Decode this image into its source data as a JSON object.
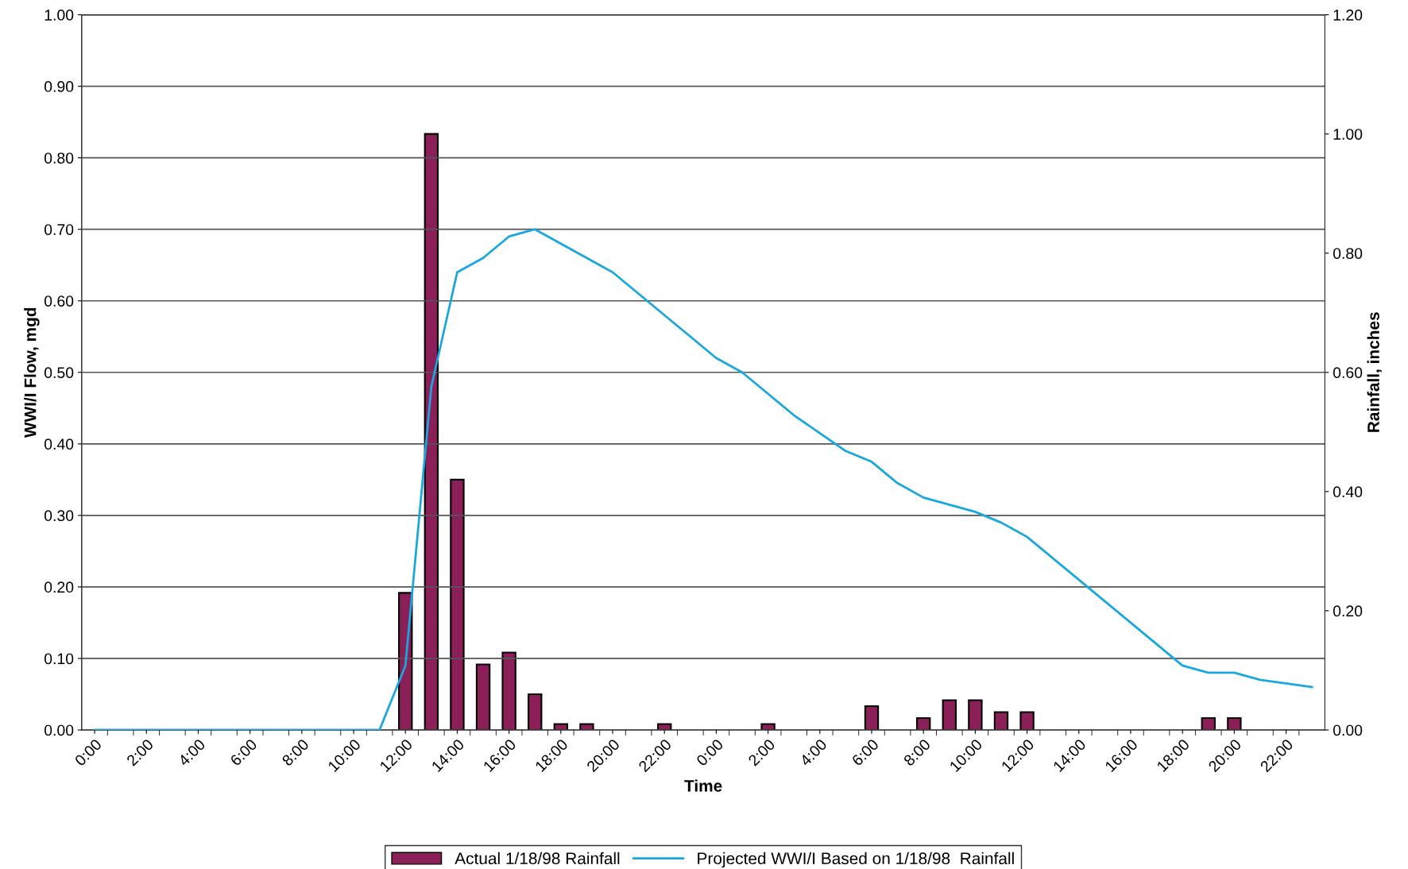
{
  "chart_data": {
    "type": "bar",
    "xlabel": "Time",
    "ylabel": "WWI/I Flow, mgd",
    "y2label": "Rainfall, inches",
    "categories": [
      "0:00",
      null,
      "2:00",
      null,
      "4:00",
      null,
      "6:00",
      null,
      "8:00",
      null,
      "10:00",
      null,
      "12:00",
      null,
      "14:00",
      null,
      "16:00",
      null,
      "18:00",
      null,
      "20:00",
      null,
      "22:00",
      null,
      "0:00",
      null,
      "2:00",
      null,
      "4:00",
      null,
      "6:00",
      null,
      "8:00",
      null,
      "10:00",
      null,
      "12:00",
      null,
      "14:00",
      null,
      "16:00",
      null,
      "18:00",
      null,
      "20:00",
      null,
      "22:00",
      null
    ],
    "series": [
      {
        "name": "Actual 1/18/98 Rainfall",
        "axis": "y2",
        "color": "#8b1f57",
        "values": [
          null,
          null,
          null,
          null,
          null,
          null,
          null,
          null,
          null,
          null,
          null,
          null,
          0.23,
          1.0,
          0.42,
          0.11,
          0.13,
          0.06,
          0.01,
          0.01,
          null,
          null,
          0.01,
          null,
          null,
          null,
          0.01,
          null,
          null,
          null,
          0.04,
          null,
          0.02,
          0.05,
          0.05,
          0.03,
          0.03,
          null,
          null,
          null,
          null,
          null,
          null,
          0.02,
          0.02,
          null,
          null,
          null
        ]
      },
      {
        "name": "Projected WWI/I Based on 1/18/98  Rainfall",
        "type": "line",
        "color": "#1aa7e0",
        "values": [
          0,
          0,
          0,
          0,
          0,
          0,
          0,
          0,
          0,
          0,
          0,
          0,
          0.09,
          0.48,
          0.64,
          0.66,
          0.69,
          0.7,
          0.68,
          0.66,
          0.64,
          0.61,
          0.58,
          0.55,
          0.52,
          0.5,
          0.47,
          0.44,
          0.415,
          0.39,
          0.375,
          0.345,
          0.325,
          0.315,
          0.305,
          0.29,
          0.27,
          0.24,
          0.21,
          0.18,
          0.15,
          0.12,
          0.09,
          0.08,
          0.08,
          0.07,
          0.065,
          0.06
        ]
      }
    ],
    "ylim": [
      0,
      1.0
    ],
    "yticks": [
      {
        "value": 0,
        "label": "0.00"
      },
      {
        "value": 0.1,
        "label": "0.10"
      },
      {
        "value": 0.2,
        "label": "0.20"
      },
      {
        "value": 0.3,
        "label": "0.30"
      },
      {
        "value": 0.4,
        "label": "0.40"
      },
      {
        "value": 0.5,
        "label": "0.50"
      },
      {
        "value": 0.6,
        "label": "0.60"
      },
      {
        "value": 0.7,
        "label": "0.70"
      },
      {
        "value": 0.8,
        "label": "0.80"
      },
      {
        "value": 0.9,
        "label": "0.90"
      },
      {
        "value": 1.0,
        "label": "1.00"
      }
    ],
    "y2lim": [
      0,
      1.2
    ],
    "y2ticks": [
      {
        "value": 0,
        "label": "0.00"
      },
      {
        "value": 0.2,
        "label": "0.20"
      },
      {
        "value": 0.4,
        "label": "0.40"
      },
      {
        "value": 0.6,
        "label": "0.60"
      },
      {
        "value": 0.8,
        "label": "0.80"
      },
      {
        "value": 1.0,
        "label": "1.00"
      },
      {
        "value": 1.2,
        "label": "1.20"
      }
    ],
    "grid": "y",
    "legend": "bottom",
    "marker": "none",
    "line_style": "solid"
  }
}
